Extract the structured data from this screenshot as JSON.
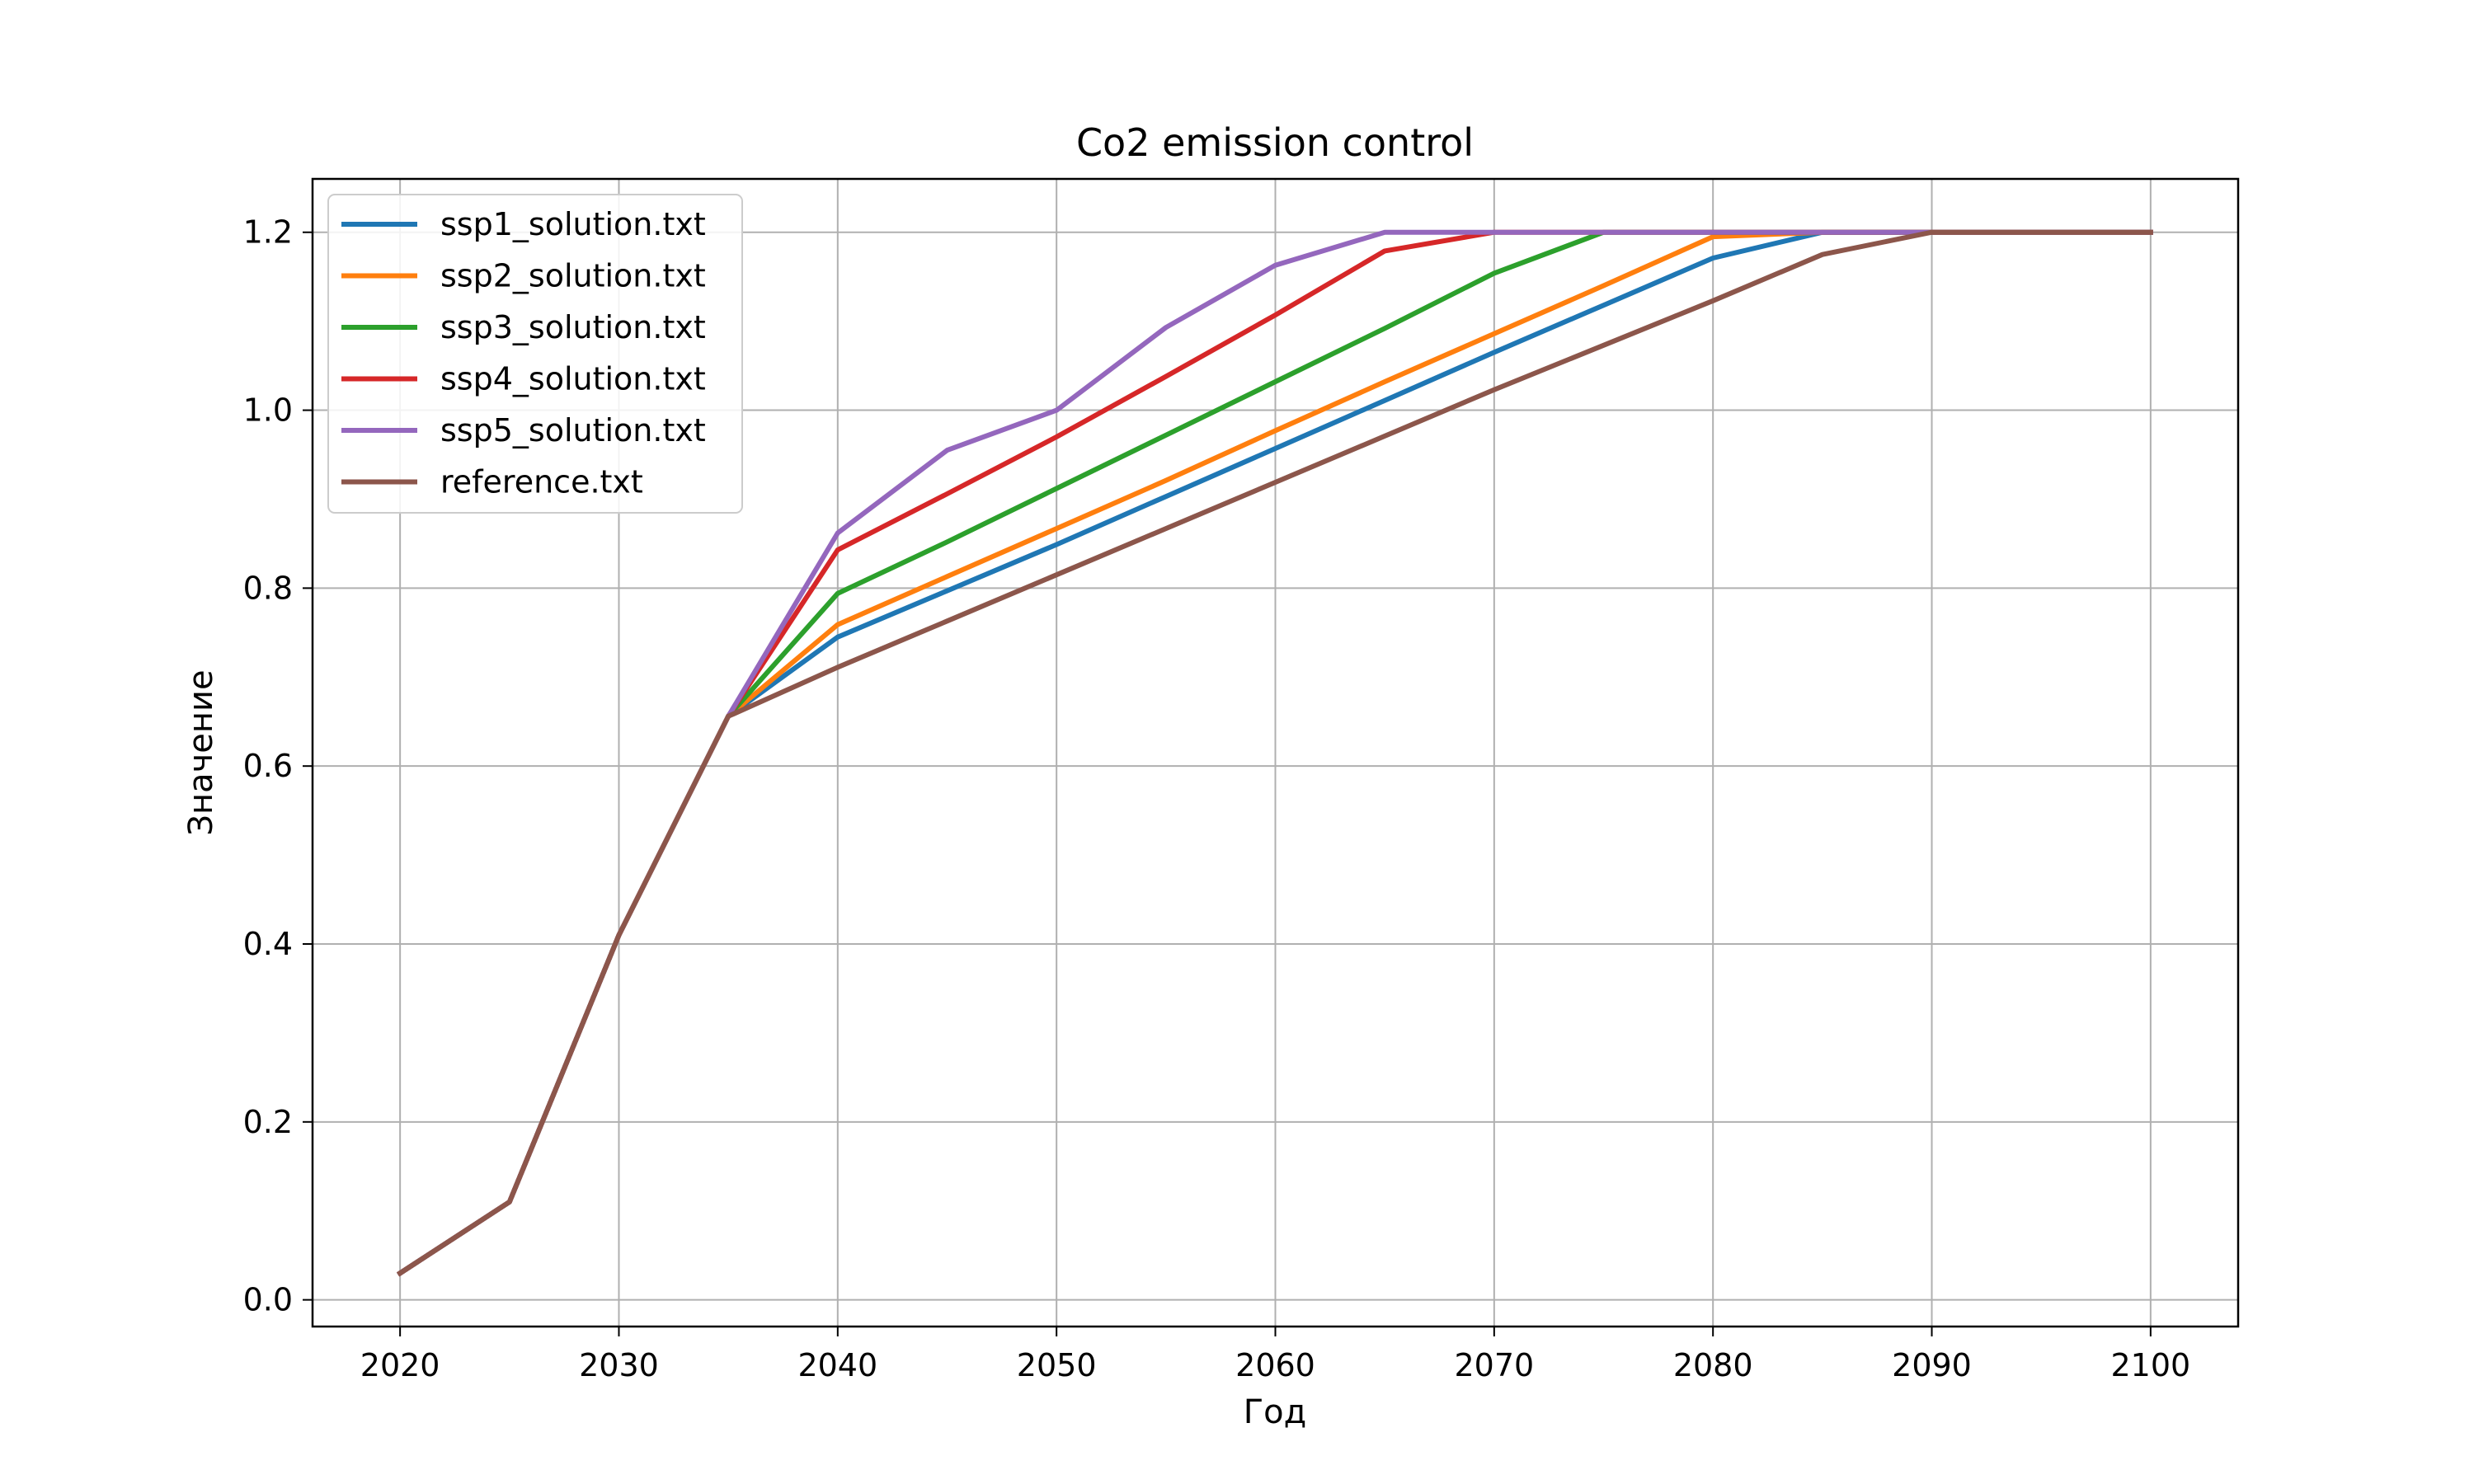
{
  "chart_data": {
    "type": "line",
    "title": "Co2 emission control",
    "xlabel": "Год",
    "ylabel": "Значение",
    "xlim": [
      2016,
      2104
    ],
    "ylim": [
      -0.03,
      1.26
    ],
    "grid": true,
    "legend_position": "top-left",
    "xticks": [
      "2020",
      "2030",
      "2040",
      "2050",
      "2060",
      "2070",
      "2080",
      "2090",
      "2100"
    ],
    "yticks": [
      "0.0",
      "0.2",
      "0.4",
      "0.6",
      "0.8",
      "1.0",
      "1.2"
    ],
    "x": [
      2020,
      2025,
      2030,
      2035,
      2040,
      2045,
      2050,
      2055,
      2060,
      2065,
      2070,
      2075,
      2080,
      2085,
      2090,
      2095,
      2100
    ],
    "series": [
      {
        "name": "ssp1_solution.txt",
        "color": "#1f77b4",
        "values": [
          0.03,
          0.11,
          0.41,
          0.656,
          0.745,
          0.797,
          0.849,
          0.903,
          0.957,
          1.011,
          1.065,
          1.118,
          1.171,
          1.2,
          1.2,
          1.2,
          1.2
        ]
      },
      {
        "name": "ssp2_solution.txt",
        "color": "#ff7f0e",
        "values": [
          0.03,
          0.11,
          0.41,
          0.656,
          0.759,
          0.813,
          0.867,
          0.921,
          0.977,
          1.032,
          1.086,
          1.14,
          1.195,
          1.2,
          1.2,
          1.2,
          1.2
        ]
      },
      {
        "name": "ssp3_solution.txt",
        "color": "#2ca02c",
        "values": [
          0.03,
          0.11,
          0.41,
          0.656,
          0.794,
          0.852,
          0.912,
          0.972,
          1.032,
          1.092,
          1.154,
          1.2,
          1.2,
          1.2,
          1.2,
          1.2,
          1.2
        ]
      },
      {
        "name": "ssp4_solution.txt",
        "color": "#d62728",
        "values": [
          0.03,
          0.11,
          0.41,
          0.656,
          0.843,
          0.906,
          0.97,
          1.038,
          1.107,
          1.179,
          1.2,
          1.2,
          1.2,
          1.2,
          1.2,
          1.2,
          1.2
        ]
      },
      {
        "name": "ssp5_solution.txt",
        "color": "#9467bd",
        "values": [
          0.03,
          0.11,
          0.41,
          0.656,
          0.862,
          0.955,
          1.0,
          1.093,
          1.163,
          1.2,
          1.2,
          1.2,
          1.2,
          1.2,
          1.2,
          1.2,
          1.2
        ]
      },
      {
        "name": "reference.txt",
        "color": "#8c564b",
        "values": [
          0.03,
          0.11,
          0.41,
          0.656,
          0.711,
          0.763,
          0.815,
          0.867,
          0.919,
          0.971,
          1.023,
          1.073,
          1.123,
          1.175,
          1.2,
          1.2,
          1.2
        ]
      }
    ]
  }
}
